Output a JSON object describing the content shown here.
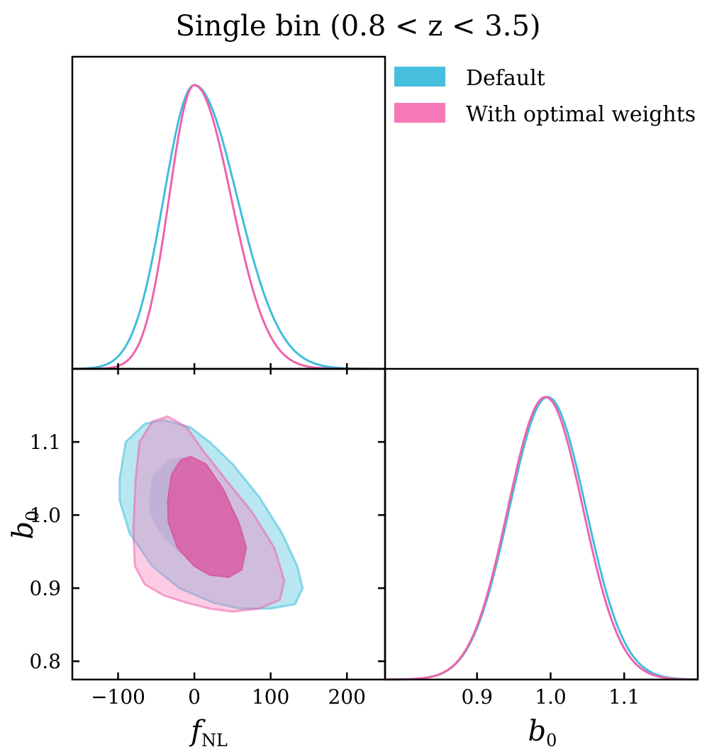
{
  "title": "Single bin (0.8 < z < 3.5)",
  "legend": {
    "position": "top-right",
    "entries": [
      {
        "label": "Default",
        "color": "#45BFDD"
      },
      {
        "label": "With optimal weights",
        "color": "#F779B7"
      }
    ]
  },
  "colors": {
    "default": "#45BFDD",
    "optimal": "#F779B7",
    "default_line": "#40BDDC",
    "optimal_line": "#EE63AC",
    "axes": "#000000"
  },
  "chart_data": [
    {
      "type": "line",
      "panel": "fNL marginal",
      "xlabel": "",
      "xlim": [
        -160,
        250
      ],
      "ylim": [
        0,
        1.1
      ],
      "x_ticks": [
        -100,
        0,
        100,
        200
      ],
      "y_ticks": [],
      "series": [
        {
          "name": "Default",
          "mean": 0,
          "sigma_left": 40,
          "sigma_right": 56
        },
        {
          "name": "With optimal weights",
          "mean": 0,
          "sigma_left": 33,
          "sigma_right": 48
        }
      ]
    },
    {
      "type": "area",
      "panel": "fNL vs b0 2D posterior",
      "xlabel": "f_NL",
      "ylabel": "b_0",
      "xlim": [
        -160,
        250
      ],
      "ylim": [
        0.775,
        1.2
      ],
      "x_ticks": [
        -100,
        0,
        100,
        200
      ],
      "x_tick_labels": [
        "−100",
        "0",
        "100",
        "200"
      ],
      "y_ticks": [
        0.8,
        0.9,
        1.0,
        1.1
      ],
      "y_tick_labels": [
        "0.8",
        "0.9",
        "1.0",
        "1.1"
      ],
      "series": [
        {
          "name": "Default",
          "contour_95": [
            [
              -98,
              1.05
            ],
            [
              -90,
              1.1
            ],
            [
              -65,
              1.125
            ],
            [
              -40,
              1.13
            ],
            [
              -5,
              1.12
            ],
            [
              20,
              1.1
            ],
            [
              50,
              1.07
            ],
            [
              85,
              1.025
            ],
            [
              115,
              0.975
            ],
            [
              135,
              0.93
            ],
            [
              142,
              0.9
            ],
            [
              132,
              0.878
            ],
            [
              100,
              0.872
            ],
            [
              60,
              0.872
            ],
            [
              25,
              0.88
            ],
            [
              -20,
              0.9
            ],
            [
              -55,
              0.93
            ],
            [
              -85,
              0.975
            ],
            [
              -98,
              1.02
            ]
          ],
          "contour_68": [
            [
              -60,
              1.02
            ],
            [
              -55,
              1.055
            ],
            [
              -35,
              1.075
            ],
            [
              -15,
              1.08
            ],
            [
              10,
              1.065
            ],
            [
              40,
              1.03
            ],
            [
              62,
              0.985
            ],
            [
              70,
              0.955
            ],
            [
              58,
              0.935
            ],
            [
              35,
              0.925
            ],
            [
              10,
              0.93
            ],
            [
              -20,
              0.948
            ],
            [
              -45,
              0.975
            ],
            [
              -58,
              1.0
            ]
          ]
        },
        {
          "name": "With optimal weights",
          "contour_95": [
            [
              -77,
              1.05
            ],
            [
              -72,
              1.1
            ],
            [
              -55,
              1.128
            ],
            [
              -35,
              1.135
            ],
            [
              -10,
              1.12
            ],
            [
              10,
              1.09
            ],
            [
              40,
              1.05
            ],
            [
              75,
              1.005
            ],
            [
              105,
              0.955
            ],
            [
              118,
              0.91
            ],
            [
              112,
              0.884
            ],
            [
              85,
              0.872
            ],
            [
              50,
              0.868
            ],
            [
              20,
              0.872
            ],
            [
              -10,
              0.88
            ],
            [
              -40,
              0.89
            ],
            [
              -65,
              0.905
            ],
            [
              -78,
              0.93
            ],
            [
              -80,
              0.98
            ]
          ],
          "contour_68": [
            [
              -35,
              1.02
            ],
            [
              -30,
              1.055
            ],
            [
              -18,
              1.075
            ],
            [
              -5,
              1.08
            ],
            [
              15,
              1.07
            ],
            [
              38,
              1.035
            ],
            [
              58,
              0.99
            ],
            [
              68,
              0.955
            ],
            [
              62,
              0.925
            ],
            [
              45,
              0.915
            ],
            [
              20,
              0.918
            ],
            [
              0,
              0.93
            ],
            [
              -22,
              0.955
            ],
            [
              -34,
              0.99
            ]
          ]
        }
      ]
    },
    {
      "type": "line",
      "panel": "b0 marginal",
      "xlabel": "b_0",
      "xlim": [
        0.775,
        1.2
      ],
      "ylim": [
        0,
        1.1
      ],
      "x_ticks": [
        0.9,
        1.0,
        1.1
      ],
      "x_tick_labels": [
        "0.9",
        "1.0",
        "1.1"
      ],
      "y_ticks": [],
      "series": [
        {
          "name": "Default",
          "mean": 0.996,
          "sigma": 0.052
        },
        {
          "name": "With optimal weights",
          "mean": 0.993,
          "sigma": 0.051
        }
      ]
    }
  ]
}
